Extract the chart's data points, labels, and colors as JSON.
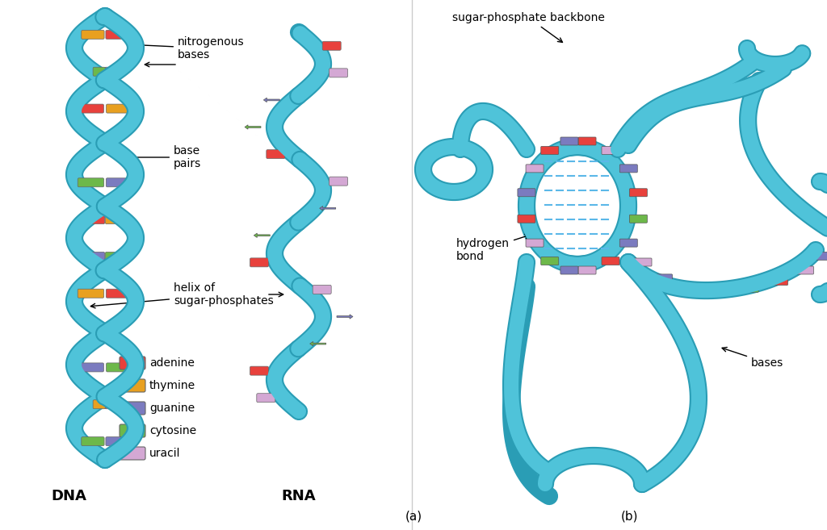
{
  "bg_color": "#ffffff",
  "helix_color": "#4FC3D9",
  "helix_edge": "#2A9DB5",
  "adenine_color": "#E8413C",
  "thymine_color": "#E8A020",
  "guanine_color": "#7B7BBF",
  "cytosine_color": "#6DB84A",
  "uracil_color": "#D4A8D4",
  "hbond_color": "#5BB8E8",
  "label_font": 11,
  "title_font": 13,
  "annot_font": 10,
  "legend_items": [
    {
      "label": "adenine",
      "color": "#E8413C"
    },
    {
      "label": "thymine",
      "color": "#E8A020"
    },
    {
      "label": "guanine",
      "color": "#7B7BBF"
    },
    {
      "label": "cytosine",
      "color": "#6DB84A"
    },
    {
      "label": "uracil",
      "color": "#D4A8D4"
    }
  ],
  "panel_a_label": "(a)",
  "panel_b_label": "(b)",
  "dna_label": "DNA",
  "rna_label": "RNA",
  "annotations_a": [
    "nitrogenous\nbases",
    "base\npairs",
    "helix of\nsugar-phosphates"
  ],
  "annotations_b": [
    "sugar-phosphate backbone",
    "hydrogen\nbond",
    "bases"
  ]
}
